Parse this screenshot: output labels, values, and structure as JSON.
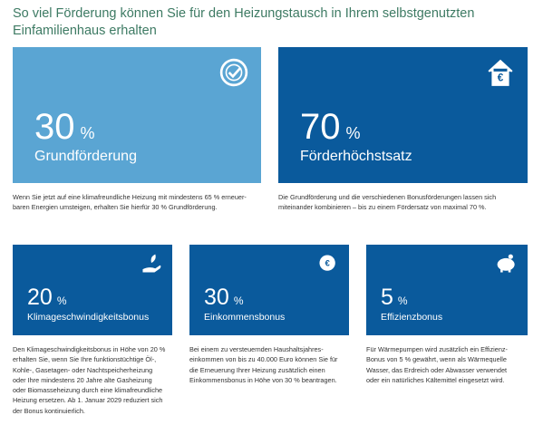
{
  "header": {
    "title": [
      "So viel Förderung können Sie für den Heizungstausch in Ihrem selbstgenutzten",
      "Einfamilienhaus erhalten"
    ]
  },
  "cards": [
    {
      "number": "30",
      "unit": "%",
      "label": "Grundförderung",
      "description": [
        "Wenn Sie jetzt auf eine klimafreundliche Heizung mit mindestens 65 % erneuer-",
        "baren Energien umsteigen, erhalten Sie hierfür 30 % Grundförderung."
      ]
    },
    {
      "number": "70",
      "unit": "%",
      "label": "Förderhöchstsatz",
      "description": [
        "Die Grundförderung und die verschiedenen Bonusförderungen lassen sich",
        "miteinander kombinieren – bis zu einem Fördersatz von maximal 70 %."
      ]
    },
    {
      "number": "20",
      "unit": "%",
      "label": "Klimageschwindigkeitsbonus",
      "description": [
        "Den Klimageschwindigkeitsbonus in Höhe von 20 %",
        "erhalten Sie, wenn Sie Ihre funktionstüchtige Öl-,",
        "Kohle-, Gasetagen- oder Nachtspeicherheizung",
        "oder Ihre mindestens 20 Jahre alte Gasheizung",
        "oder Biomasseheizung durch eine klimafreundliche",
        "Heizung ersetzen. Ab 1. Januar 2029 reduziert sich",
        "der Bonus kontinuierlich."
      ]
    },
    {
      "number": "30",
      "unit": "%",
      "label": "Einkommensbonus",
      "description": [
        "Bei einem zu versteuernden Haushaltsjahres-",
        "einkommen von bis zu 40.000 Euro können Sie für",
        "die Erneuerung Ihrer Heizung zusätzlich einen",
        "Einkommensbonus in Höhe von 30 % beantragen."
      ]
    },
    {
      "number": "5",
      "unit": "%",
      "label": "Effizienzbonus",
      "description": [
        "Für Wärmepumpen wird zusätzlich ein Effizienz-",
        "Bonus von 5 % gewährt, wenn als Wärmequelle",
        "Wasser, das Erdreich oder Abwasser verwendet",
        "oder ein natürliches Kältemittel eingesetzt wird."
      ]
    }
  ]
}
